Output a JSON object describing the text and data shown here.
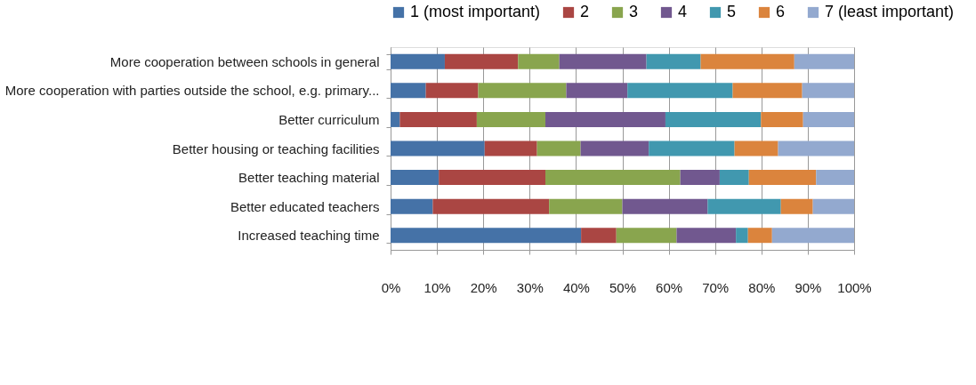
{
  "chart_data": {
    "type": "bar",
    "orientation": "horizontal",
    "stacked": true,
    "categories": [
      "More cooperation between schools in general",
      "More cooperation with parties outside the school, e.g. primary...",
      "Better curriculum",
      "Better housing or teaching facilities",
      "Better teaching material",
      "Better educated teachers",
      "Increased teaching time"
    ],
    "series": [
      {
        "name": "1 (most important)",
        "color": "#4572a7",
        "values": [
          11.7,
          7.6,
          2.0,
          20.3,
          10.4,
          9.1,
          41.1
        ]
      },
      {
        "name": "2",
        "color": "#aa4643",
        "values": [
          15.8,
          11.3,
          16.6,
          11.3,
          23.0,
          25.1,
          7.6
        ]
      },
      {
        "name": "3",
        "color": "#89a54e",
        "values": [
          8.9,
          19.0,
          14.8,
          9.4,
          29.1,
          15.8,
          13.0
        ]
      },
      {
        "name": "4",
        "color": "#71588f",
        "values": [
          18.8,
          13.2,
          25.9,
          14.7,
          8.5,
          18.4,
          12.8
        ]
      },
      {
        "name": "5",
        "color": "#4198af",
        "values": [
          11.7,
          22.7,
          20.6,
          18.5,
          6.3,
          15.8,
          2.6
        ]
      },
      {
        "name": "6",
        "color": "#db843d",
        "values": [
          20.2,
          15.0,
          9.1,
          9.4,
          14.5,
          6.9,
          5.2
        ]
      },
      {
        "name": "7 (least important)",
        "color": "#93a9cf",
        "values": [
          12.9,
          11.2,
          11.0,
          16.4,
          8.2,
          8.9,
          17.7
        ]
      }
    ],
    "xlim": [
      0,
      100
    ],
    "xticks": [
      {
        "value": 0,
        "label": "0%"
      },
      {
        "value": 10,
        "label": "10%"
      },
      {
        "value": 20,
        "label": "20%"
      },
      {
        "value": 30,
        "label": "30%"
      },
      {
        "value": 40,
        "label": "40%"
      },
      {
        "value": 50,
        "label": "50%"
      },
      {
        "value": 60,
        "label": "60%"
      },
      {
        "value": 70,
        "label": "70%"
      },
      {
        "value": 80,
        "label": "80%"
      },
      {
        "value": 90,
        "label": "90%"
      },
      {
        "value": 100,
        "label": "100%"
      }
    ],
    "grid": "x",
    "legend": "top"
  }
}
